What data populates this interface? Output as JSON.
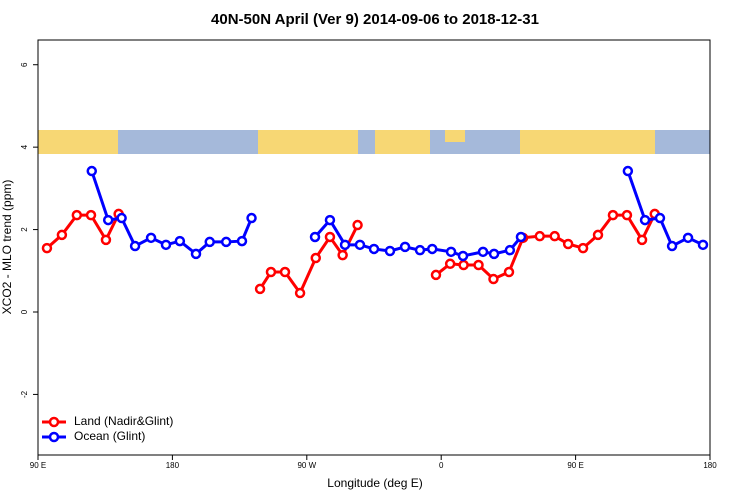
{
  "chart_data": {
    "type": "line",
    "title": "40N-50N April (Ver 9)   2014-09-06 to 2018-12-31",
    "x_label": "Longitude (deg E)",
    "y_label": "XCO2 - MLO trend (ppm)",
    "xlim": [
      90,
      540
    ],
    "xticks": [
      {
        "value": 90,
        "label": "90 E"
      },
      {
        "value": 180,
        "label": "180"
      },
      {
        "value": 270,
        "label": "90 W"
      },
      {
        "value": 360,
        "label": "0"
      },
      {
        "value": 450,
        "label": "90 E"
      },
      {
        "value": 540,
        "label": "180"
      }
    ],
    "ylim": [
      -3.47,
      6.6
    ],
    "yticks": [
      -2,
      0,
      2,
      4,
      6
    ],
    "legend": "bottom-left",
    "series": [
      {
        "name": "Land (Nadir&Glint)",
        "color": "#ff0000",
        "x": [
          96,
          106,
          116,
          125.5,
          135.5,
          144,
          null,
          238.7,
          246,
          255.4,
          265.5,
          276,
          285.5,
          294,
          304,
          null,
          356.5,
          366,
          375,
          385,
          395,
          405.4,
          414.8,
          426,
          436,
          445,
          455,
          465,
          475,
          484.4,
          494.5,
          503
        ],
        "values": [
          1.55,
          1.87,
          2.35,
          2.35,
          1.75,
          2.38,
          null,
          0.56,
          0.97,
          0.97,
          0.46,
          1.31,
          1.82,
          1.38,
          2.11,
          null,
          0.9,
          1.17,
          1.14,
          1.14,
          0.8,
          0.97,
          1.8,
          1.84,
          1.84,
          1.65,
          1.55,
          1.87,
          2.35,
          2.35,
          1.75,
          2.38
        ]
      },
      {
        "name": "Ocean (Glint)",
        "color": "#0000ff",
        "x": [
          126,
          137,
          146,
          155,
          165.7,
          175.7,
          185,
          195.8,
          205,
          216,
          226.6,
          233,
          null,
          275.5,
          285.5,
          295.6,
          305.6,
          315,
          325.7,
          335.8,
          345.8,
          354,
          366.6,
          374.6,
          388,
          395.4,
          406,
          413.4,
          null,
          485,
          496.5,
          506.5,
          514.6,
          525.3,
          535.3
        ],
        "values": [
          3.42,
          2.23,
          2.28,
          1.6,
          1.8,
          1.63,
          1.72,
          1.41,
          1.7,
          1.7,
          1.72,
          2.28,
          null,
          1.82,
          2.23,
          1.63,
          1.63,
          1.53,
          1.48,
          1.58,
          1.5,
          1.53,
          1.46,
          1.36,
          1.46,
          1.41,
          1.5,
          1.82,
          null,
          3.42,
          2.23,
          2.28,
          1.6,
          1.8,
          1.63
        ]
      }
    ]
  }
}
